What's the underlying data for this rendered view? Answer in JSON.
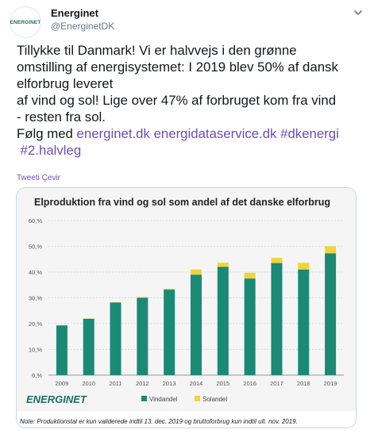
{
  "tweet": {
    "avatar_logo_text": "ENERGINET",
    "display_name": "Energinet",
    "handle": "@EnerginetDK",
    "text_lines": [
      "Tillykke til Danmark! Vi er halvvejs i den grønne",
      "omstilling af energisystemet: I 2019 blev 50% af dansk",
      "elforbrug leveret",
      "af vind og sol! Lige over 47% af forbruget kom fra vind",
      "- resten fra sol."
    ],
    "follow_prefix": "Følg med ",
    "links": [
      "energinet.dk",
      "energidataservice.dk",
      "#dkenergi",
      "#2.halvleg"
    ],
    "translate_label": "Tweeti Çevir"
  },
  "chart_data": {
    "type": "bar",
    "stacked": true,
    "title": "Elproduktion fra vind og sol som andel af det danske elforbrug",
    "categories": [
      "2009",
      "2010",
      "2011",
      "2012",
      "2013",
      "2014",
      "2015",
      "2016",
      "2017",
      "2018",
      "2019"
    ],
    "series": [
      {
        "name": "Vindandel",
        "color": "#1a8a75",
        "values": [
          19.3,
          21.9,
          28.2,
          30.0,
          33.2,
          39.0,
          42.0,
          37.5,
          43.5,
          41.0,
          47.3
        ]
      },
      {
        "name": "Solandel",
        "color": "#f2d338",
        "values": [
          0.0,
          0.1,
          0.1,
          0.3,
          0.3,
          2.0,
          1.6,
          2.2,
          2.0,
          2.6,
          2.7
        ]
      }
    ],
    "ylim": [
      0,
      60
    ],
    "yticks": [
      "0,%",
      "10,%",
      "20,%",
      "30,%",
      "40,%",
      "50,%",
      "60,%"
    ],
    "grid": true,
    "legend": "bottom",
    "brand": "ENERGINET",
    "note": "Note: Produktionstal er kun validerede indtil 13. dec. 2019 og bruttoforbrug kun indtil ult. nov. 2019."
  },
  "colors": {
    "link": "#6b4fbb",
    "brand": "#1d6e5e",
    "wind": "#1a8a75",
    "solar": "#f2d338"
  }
}
